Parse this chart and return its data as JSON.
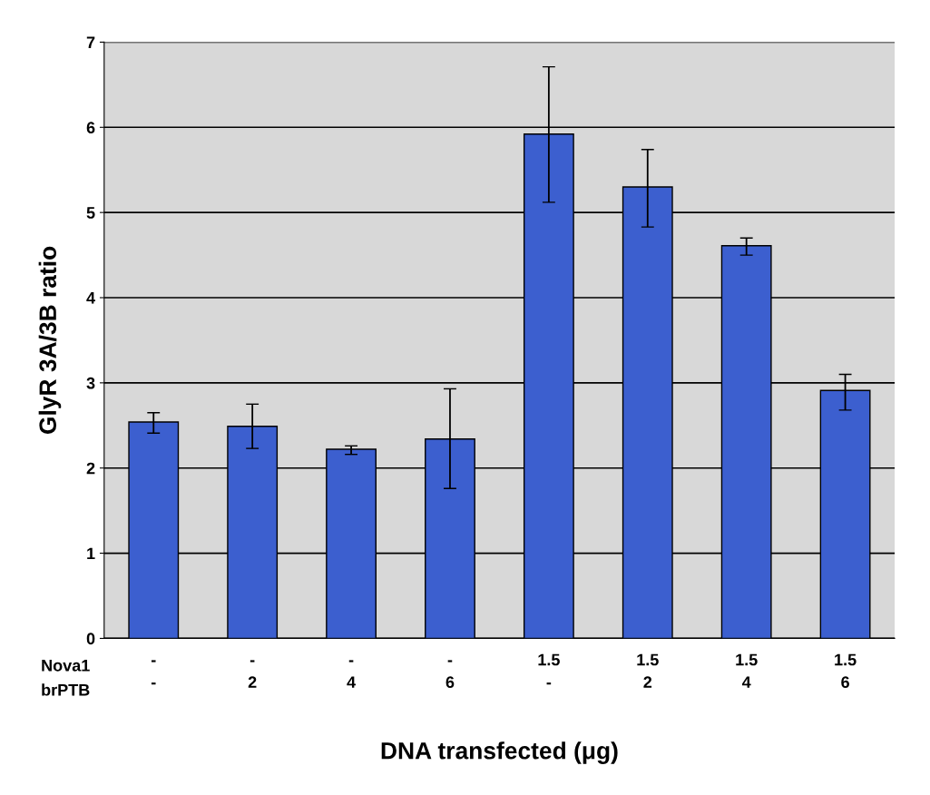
{
  "chart_data": {
    "type": "bar",
    "xlabel": "DNA transfected (μg)",
    "ylabel": "GlyR 3A/3B ratio",
    "categories": [
      "-\n-",
      "-\n2",
      "-\n4",
      "-\n6",
      "1.5\n-",
      "1.5\n2",
      "1.5\n4",
      "1.5\n6"
    ],
    "values": [
      2.54,
      2.49,
      2.22,
      2.34,
      5.92,
      5.3,
      4.61,
      2.91
    ],
    "errors": [
      [
        2.41,
        2.65
      ],
      [
        2.23,
        2.75
      ],
      [
        2.16,
        2.26
      ],
      [
        1.76,
        2.93
      ],
      [
        5.12,
        6.71
      ],
      [
        4.83,
        5.74
      ],
      [
        4.5,
        4.7
      ],
      [
        2.68,
        3.1
      ]
    ],
    "color": "#3c5fcf",
    "annotations": [
      "Nova1",
      "brPTB"
    ],
    "ylim": [
      0,
      7
    ],
    "yticks": [
      0,
      1,
      2,
      3,
      4,
      5,
      6,
      7
    ],
    "grid": "y"
  }
}
